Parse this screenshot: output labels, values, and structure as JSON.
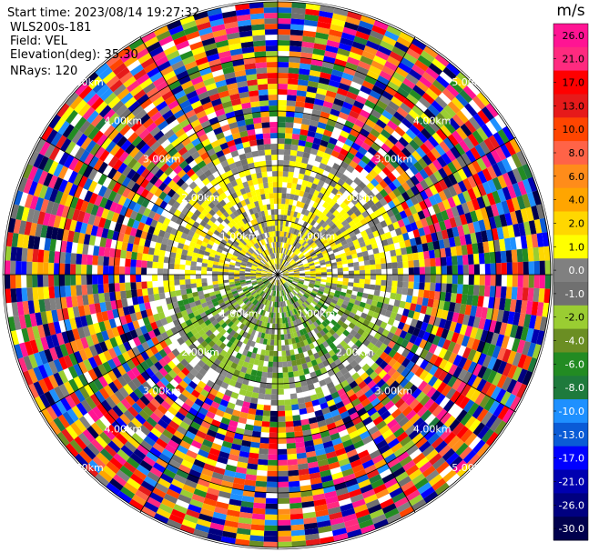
{
  "header": {
    "start_time": "Start time: 2023/08/14 19:27:32",
    "device": "WLS200s-181",
    "field": "Field: VEL",
    "elevation": "Elevation(deg): 35.30",
    "nrays": "NRays: 120"
  },
  "chart_data": {
    "type": "heatmap",
    "projection": "polar (PPI)",
    "field": "VEL",
    "n_rays": 120,
    "range_rings_km": [
      1.0,
      2.0,
      3.0,
      4.0,
      5.0
    ],
    "ring_labels": [
      "1.00km",
      "2.00km",
      "3.00km",
      "4.00km",
      "5.00km"
    ],
    "spokes_deg": [
      0,
      30,
      60,
      90,
      120,
      150,
      180,
      210,
      240,
      270,
      300,
      330
    ],
    "max_range_km": 7.2,
    "colorbar": {
      "title": "m/s",
      "tick_labels": [
        "26.0",
        "21.0",
        "17.0",
        "13.0",
        "10.0",
        "8.0",
        "6.0",
        "4.0",
        "2.0",
        "1.0",
        "0.0",
        "-1.0",
        "-2.0",
        "-4.0",
        "-6.0",
        "-8.0",
        "-10.0",
        "-13.0",
        "-17.0",
        "-21.0",
        "-26.0",
        "-30.0"
      ],
      "colors_top_to_bottom": [
        "#ff1493",
        "#ff2a7f",
        "#ff0000",
        "#e61a1a",
        "#ff4500",
        "#ff6347",
        "#ff8c1a",
        "#ffa500",
        "#ffd700",
        "#ffff00",
        "#808080",
        "#707070",
        "#9acd32",
        "#6b8e23",
        "#228b22",
        "#1e7a3c",
        "#1e90ff",
        "#0a5bd6",
        "#0000ff",
        "#0000b0",
        "#000080",
        "#00004d"
      ]
    },
    "pattern_description": {
      "inner_region_km": 2.0,
      "inner_dominant": [
        "yellow",
        "gray"
      ],
      "south_inner_dominant": [
        "olive",
        "green"
      ],
      "outer_noise": "random colors across full scale"
    }
  }
}
